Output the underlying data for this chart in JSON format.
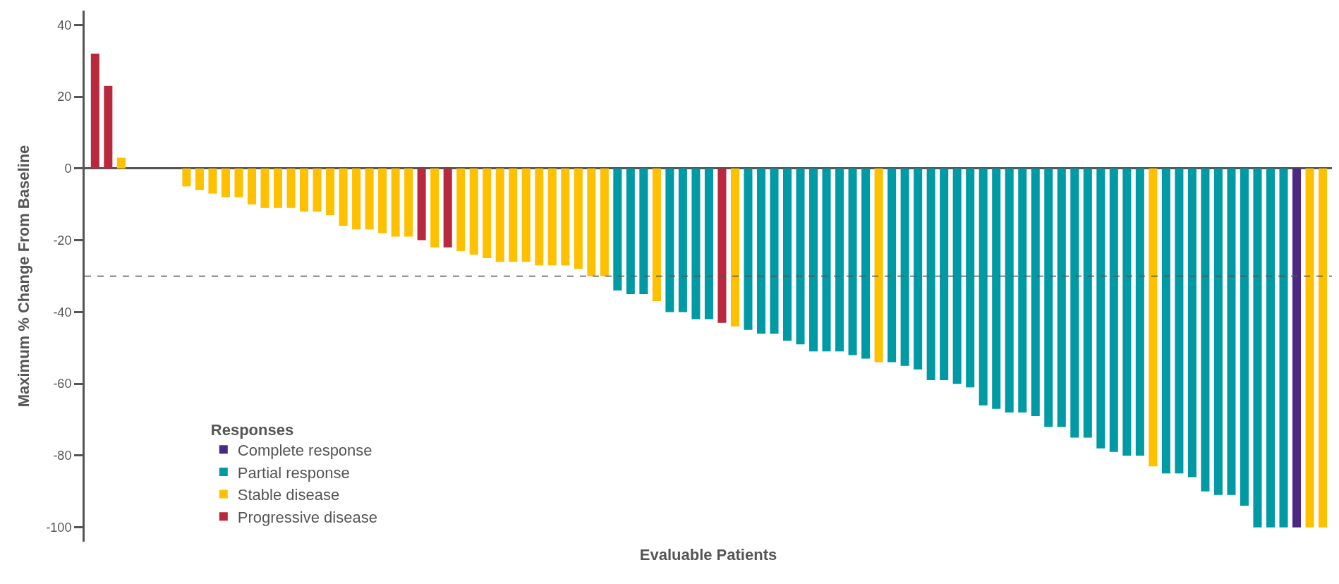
{
  "chart_data": {
    "type": "bar",
    "xlabel": "Evaluable Patients",
    "ylabel": "Maximum % Change From Baseline",
    "legend_title": "Responses",
    "categories": [
      null,
      null,
      null,
      null,
      null,
      null,
      null,
      null,
      null,
      null,
      null,
      null,
      null,
      null,
      null,
      null,
      null,
      null,
      null,
      null,
      null,
      null,
      null,
      null,
      null,
      null,
      null,
      null,
      null,
      null,
      null,
      null,
      null,
      null,
      null,
      null,
      null,
      null,
      null,
      null,
      null,
      null,
      null,
      null,
      null,
      null,
      null,
      null,
      null,
      null,
      null,
      null,
      null,
      null,
      null,
      null,
      null,
      null,
      null,
      null,
      null,
      null,
      null,
      null,
      null,
      null,
      null,
      null,
      null,
      null,
      null,
      null,
      null,
      null,
      null,
      null,
      null,
      null,
      null,
      null,
      null,
      null,
      null,
      null,
      null,
      null,
      null,
      null,
      null,
      null,
      null,
      null,
      null,
      null,
      null
    ],
    "series": [
      {
        "name": "Complete response",
        "color": "#4b2882",
        "values": [
          null,
          null,
          null,
          null,
          null,
          null,
          null,
          null,
          null,
          null,
          null,
          null,
          null,
          null,
          null,
          null,
          null,
          null,
          null,
          null,
          null,
          null,
          null,
          null,
          null,
          null,
          null,
          null,
          null,
          null,
          null,
          null,
          null,
          null,
          null,
          null,
          null,
          null,
          null,
          null,
          null,
          null,
          null,
          null,
          null,
          null,
          null,
          null,
          null,
          null,
          null,
          null,
          null,
          null,
          null,
          null,
          null,
          null,
          null,
          null,
          null,
          null,
          null,
          null,
          null,
          null,
          null,
          null,
          null,
          null,
          null,
          null,
          null,
          null,
          null,
          null,
          null,
          null,
          null,
          null,
          null,
          null,
          null,
          null,
          null,
          null,
          null,
          null,
          null,
          null,
          null,
          null,
          -100,
          null,
          null
        ]
      },
      {
        "name": "Partial response",
        "color": "#009aa4",
        "values": [
          null,
          null,
          null,
          null,
          null,
          null,
          null,
          null,
          null,
          null,
          null,
          null,
          null,
          null,
          null,
          null,
          null,
          null,
          null,
          null,
          null,
          null,
          null,
          null,
          null,
          null,
          null,
          null,
          null,
          null,
          null,
          null,
          null,
          null,
          null,
          null,
          null,
          null,
          null,
          null,
          -34,
          -35,
          -35,
          null,
          -40,
          -40,
          -42,
          -42,
          null,
          null,
          -45,
          -46,
          -46,
          -48,
          -49,
          -51,
          -51,
          -51,
          -52,
          -53,
          null,
          -54,
          -55,
          -56,
          -59,
          -59,
          -60,
          -61,
          -66,
          -67,
          -68,
          -68,
          -69,
          -72,
          -72,
          -75,
          -75,
          -78,
          -79,
          -80,
          -80,
          null,
          -85,
          -85,
          -86,
          -90,
          -91,
          -91,
          -94,
          -100,
          -100,
          -100,
          null,
          null,
          null
        ]
      },
      {
        "name": "Stable disease",
        "color": "#ffc000",
        "values": [
          null,
          null,
          3,
          0,
          0,
          0,
          0,
          -5,
          -6,
          -7,
          -8,
          -8,
          -10,
          -11,
          -11,
          -11,
          -12,
          -12,
          -13,
          -16,
          -17,
          -17,
          -18,
          -19,
          -19,
          null,
          -22,
          null,
          -23,
          -24,
          -25,
          -26,
          -26,
          -26,
          -27,
          -27,
          -27,
          -28,
          -30,
          -30,
          null,
          null,
          null,
          -37,
          null,
          null,
          null,
          null,
          null,
          -44,
          null,
          null,
          null,
          null,
          null,
          null,
          null,
          null,
          null,
          null,
          -54,
          null,
          null,
          null,
          null,
          null,
          null,
          null,
          null,
          null,
          null,
          null,
          null,
          null,
          null,
          null,
          null,
          null,
          null,
          null,
          null,
          -83,
          null,
          null,
          null,
          null,
          null,
          null,
          null,
          null,
          null,
          null,
          null,
          -100,
          -100
        ]
      },
      {
        "name": "Progressive disease",
        "color": "#b8293d",
        "values": [
          32,
          23,
          null,
          null,
          null,
          null,
          null,
          null,
          null,
          null,
          null,
          null,
          null,
          null,
          null,
          null,
          null,
          null,
          null,
          null,
          null,
          null,
          null,
          null,
          null,
          -20,
          null,
          -22,
          null,
          null,
          null,
          null,
          null,
          null,
          null,
          null,
          null,
          null,
          null,
          null,
          null,
          null,
          null,
          null,
          null,
          null,
          null,
          null,
          -43,
          null,
          null,
          null,
          null,
          null,
          null,
          null,
          null,
          null,
          null,
          null,
          null,
          null,
          null,
          null,
          null,
          null,
          null,
          null,
          null,
          null,
          null,
          null,
          null,
          null,
          null,
          null,
          null,
          null,
          null,
          null,
          null,
          null,
          null,
          null,
          null,
          null,
          null,
          null,
          null,
          null,
          null,
          null,
          null,
          null,
          null
        ]
      }
    ],
    "ylim": [
      -104,
      44
    ],
    "yticks": [
      -100,
      -80,
      -60,
      -40,
      -20,
      0,
      20,
      40
    ],
    "ref_lines": [
      {
        "axis": "y",
        "value": -30,
        "color": "#555555",
        "line_style": "dashed"
      }
    ],
    "legend": "bottom left",
    "tick_labels": "y"
  }
}
